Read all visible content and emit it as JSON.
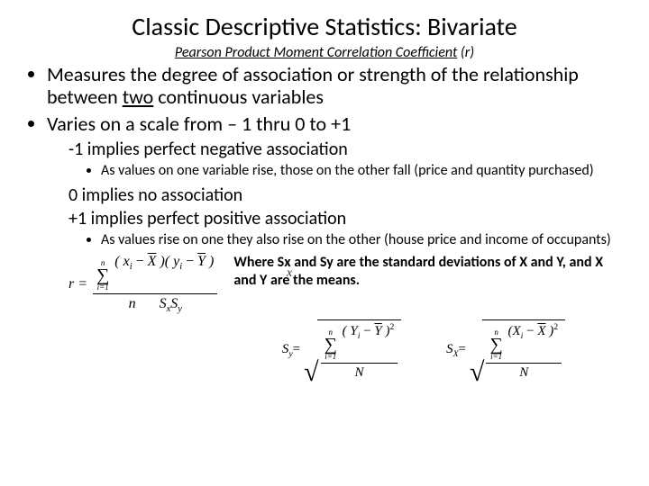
{
  "title": "Classic Descriptive Statistics: Bivariate",
  "subtitle_plain": "Pearson Product Moment Correlation Coefficient",
  "subtitle_paren": " (r)",
  "bullets": {
    "b1_pre": "Measures the degree of association or strength of the relationship between ",
    "b1_u": "two",
    "b1_post": " continuous variables",
    "b2": "Varies on a scale from – 1  thru 0  to +1"
  },
  "lvl1": {
    "neg1": "-1 implies perfect negative association",
    "neg1_sub": "As values on one variable rise, those on the other fall (price and quantity purchased)",
    "zero": "0 implies no association",
    "pos1": "+1 implies perfect positive association",
    "pos1_sub": "As values rise on one they also rise on the other (house price and income of occupants)"
  },
  "formula": {
    "r_label": "r =",
    "sum_top": "n",
    "sum_bot": "i=1",
    "num_expr_open1": "( ",
    "xi": "x",
    "i": "i",
    "minus": " − ",
    "Xbar": "X",
    "close_open": " )( ",
    "yi": "y",
    "Ybar": "Y",
    "close": " )",
    "den_n": "n",
    "den_sxsy_pre": "S",
    "den_sx_sub": "x",
    "den_sy_sub": "y",
    "where": "Where Sx and Sy are the standard deviations of X and Y,  and X  and Y are the means."
  },
  "sd": {
    "sy_label": "S",
    "sy_sub": "y",
    "eq": "=",
    "sx_label": "S",
    "sx_sub": "X",
    "Yi": "Y",
    "Xi": "X",
    "minus": " − ",
    "sq": "2",
    "N": "N",
    "sum_top": "n",
    "sum_bot": "i=1"
  },
  "colors": {
    "text": "#000000",
    "bg": "#ffffff"
  }
}
